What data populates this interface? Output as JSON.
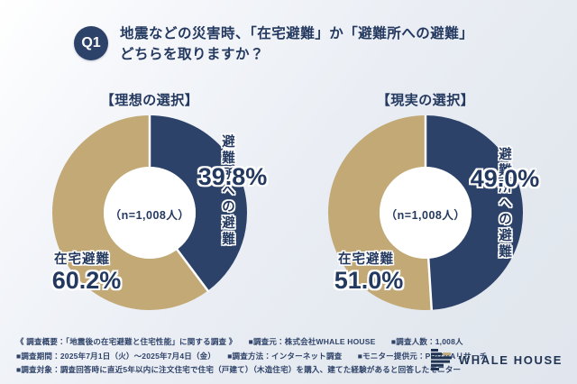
{
  "header": {
    "badge": "Q1",
    "title_line1": "地震などの災害時、「在宅避難」か「避難所への避難」",
    "title_line2": "どちらを取りますか？"
  },
  "colors": {
    "shelter_navy": "#2d4269",
    "home_tan": "#c2a975",
    "text_navy": "#24395f",
    "hole_white": "#ffffff"
  },
  "chart_data": [
    {
      "type": "pie",
      "donut": true,
      "title": "【理想の選択】",
      "center_note": "（n=1,008人）",
      "labels": [
        "避難所への避難",
        "在宅避難"
      ],
      "display_labels": [
        "避難所への\n避難",
        "在宅避難"
      ],
      "values": [
        39.8,
        60.2
      ],
      "pct_labels": [
        "39.8%",
        "60.2%"
      ],
      "colors": [
        "#2d4269",
        "#c2a975"
      ],
      "start_angle_deg": 0,
      "direction": "clockwise",
      "legend": "none"
    },
    {
      "type": "pie",
      "donut": true,
      "title": "【現実の選択】",
      "center_note": "（n=1,008人）",
      "labels": [
        "避難所への避難",
        "在宅避難"
      ],
      "display_labels": [
        "避難所への避難",
        "在宅避難"
      ],
      "values": [
        49.0,
        51.0
      ],
      "pct_labels": [
        "49.0%",
        "51.0%"
      ],
      "colors": [
        "#2d4269",
        "#c2a975"
      ],
      "start_angle_deg": 0,
      "direction": "clockwise",
      "legend": "none"
    }
  ],
  "footer": {
    "lines": [
      "《 調査概要：「地震後の在宅避難と住宅性能」に関する調査 》　　■調査元：株式会社WHALE HOUSE　　■調査人数：1,008人",
      "■調査期間：2025年7月1日（火）～2025年7月4日（金）　　■調査方法：インターネット調査　　■モニター提供元：PRIZMAリサーチ",
      "■調査対象：調査回答時に直近5年以内に注文住宅で住宅（戸建て）（木造住宅）を購入、建てた経験があると回答したモニター"
    ]
  },
  "logo": {
    "text": "WHALE HOUSE"
  }
}
